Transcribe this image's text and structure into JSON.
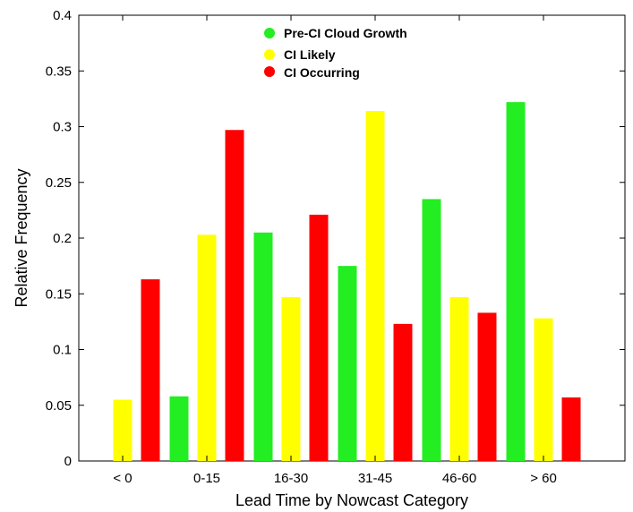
{
  "chart_data": {
    "type": "bar",
    "title": "",
    "xlabel": "Lead Time by Nowcast Category",
    "ylabel": "Relative Frequency",
    "categories": [
      "< 0",
      "0-15",
      "16-30",
      "31-45",
      "46-60",
      "> 60"
    ],
    "ylim": [
      0,
      0.4
    ],
    "yticks": [
      "0",
      "0.05",
      "0.1",
      "0.15",
      "0.2",
      "0.25",
      "0.3",
      "0.35",
      "0.4"
    ],
    "grid": false,
    "legend_position": "top-center",
    "series": [
      {
        "name": "Pre-CI Cloud Growth",
        "color": "#22ee22",
        "values": [
          0,
          0.058,
          0.205,
          0.175,
          0.235,
          0.322
        ]
      },
      {
        "name": "CI Likely",
        "color": "#ffff00",
        "values": [
          0.055,
          0.203,
          0.147,
          0.314,
          0.147,
          0.128
        ]
      },
      {
        "name": "CI Occurring",
        "color": "#ff0000",
        "values": [
          0.163,
          0.297,
          0.221,
          0.123,
          0.133,
          0.057
        ]
      }
    ]
  }
}
